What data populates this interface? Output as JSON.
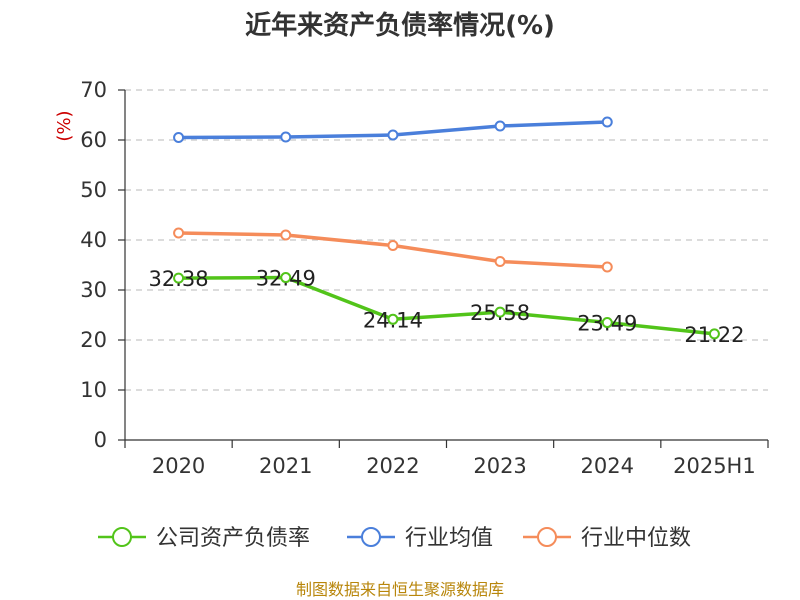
{
  "chart_data": {
    "type": "line",
    "title": "近年来资产负债率情况(%)",
    "ylabel": "(%)",
    "xlabel": "",
    "categories": [
      "2020",
      "2021",
      "2022",
      "2023",
      "2024",
      "2025H1"
    ],
    "ylim": [
      0,
      70
    ],
    "yticks": [
      0,
      10,
      20,
      30,
      40,
      50,
      60,
      70
    ],
    "grid": true,
    "legend_position": "bottom",
    "series": [
      {
        "name": "公司资产负债率",
        "color": "#52c41a",
        "values": [
          32.38,
          32.49,
          24.14,
          25.58,
          23.49,
          21.22
        ],
        "labels": [
          "32.38",
          "32.49",
          "24.14",
          "25.58",
          "23.49",
          "21.22"
        ]
      },
      {
        "name": "行业均值",
        "color": "#4a7fdb",
        "values": [
          60.5,
          60.6,
          61.0,
          62.8,
          63.6,
          null
        ]
      },
      {
        "name": "行业中位数",
        "color": "#f58c5a",
        "values": [
          41.4,
          41.0,
          38.9,
          35.7,
          34.6,
          null
        ]
      }
    ]
  },
  "source_text": "制图数据来自恒生聚源数据库"
}
